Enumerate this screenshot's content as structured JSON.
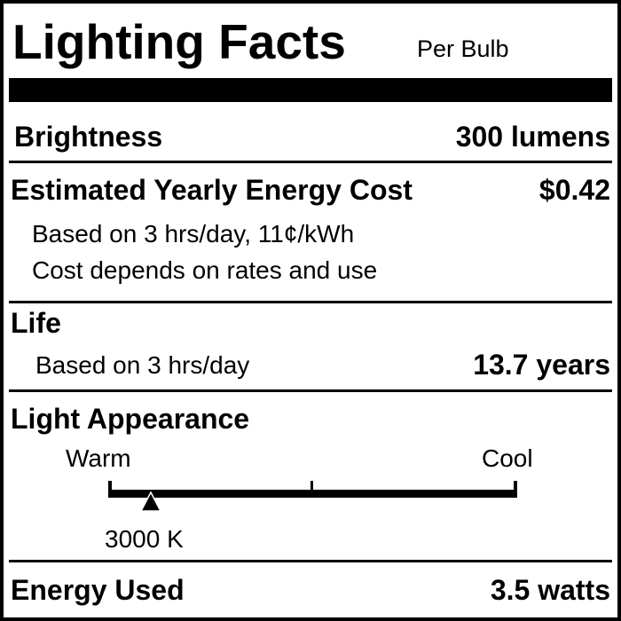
{
  "header": {
    "title": "Lighting Facts",
    "subtitle": "Per Bulb"
  },
  "brightness": {
    "label": "Brightness",
    "value": "300 lumens"
  },
  "energy_cost": {
    "label": "Estimated Yearly Energy Cost",
    "value": "$0.42",
    "note1": "Based on 3 hrs/day, 11¢/kWh",
    "note2": "Cost depends on rates and use"
  },
  "life": {
    "label": "Life",
    "note": "Based on 3 hrs/day",
    "value": "13.7 years"
  },
  "light_appearance": {
    "label": "Light Appearance",
    "warm_label": "Warm",
    "cool_label": "Cool",
    "value": "3000 K",
    "scale_position_fraction": 0.1
  },
  "energy_used": {
    "label": "Energy Used",
    "value": "3.5 watts"
  },
  "colors": {
    "ink": "#000000",
    "background": "#ffffff"
  }
}
